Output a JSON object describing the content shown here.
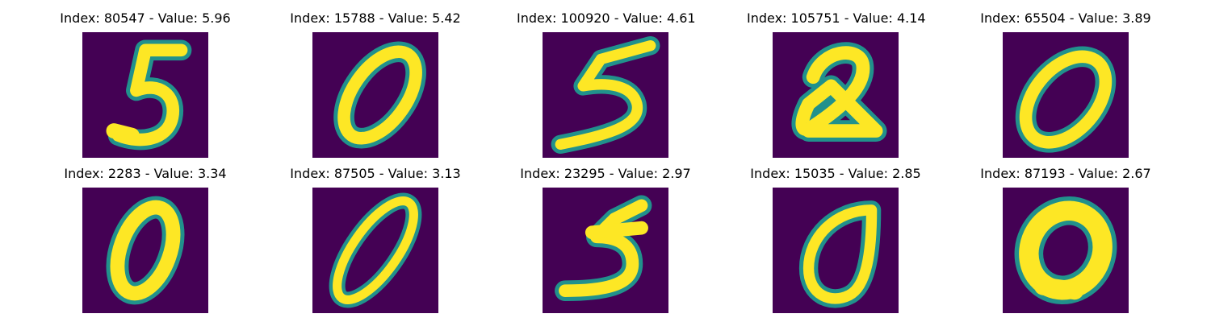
{
  "colors": {
    "background": "#440154",
    "mid": "#21918c",
    "stroke": "#fde725"
  },
  "images": [
    {
      "title": "Index: 80547 - Value: 5.96",
      "digit": "5"
    },
    {
      "title": "Index: 15788 - Value: 5.42",
      "digit": "0"
    },
    {
      "title": "Index: 100920 - Value: 4.61",
      "digit": "5"
    },
    {
      "title": "Index: 105751 - Value: 4.14",
      "digit": "2"
    },
    {
      "title": "Index: 65504 - Value: 3.89",
      "digit": "0"
    },
    {
      "title": "Index: 2283 - Value: 3.34",
      "digit": "0"
    },
    {
      "title": "Index: 87505 - Value: 3.13",
      "digit": "0"
    },
    {
      "title": "Index: 23295 - Value: 2.97",
      "digit": "5"
    },
    {
      "title": "Index: 15035 - Value: 2.85",
      "digit": "0"
    },
    {
      "title": "Index: 87193 - Value: 2.67",
      "digit": "0"
    }
  ]
}
